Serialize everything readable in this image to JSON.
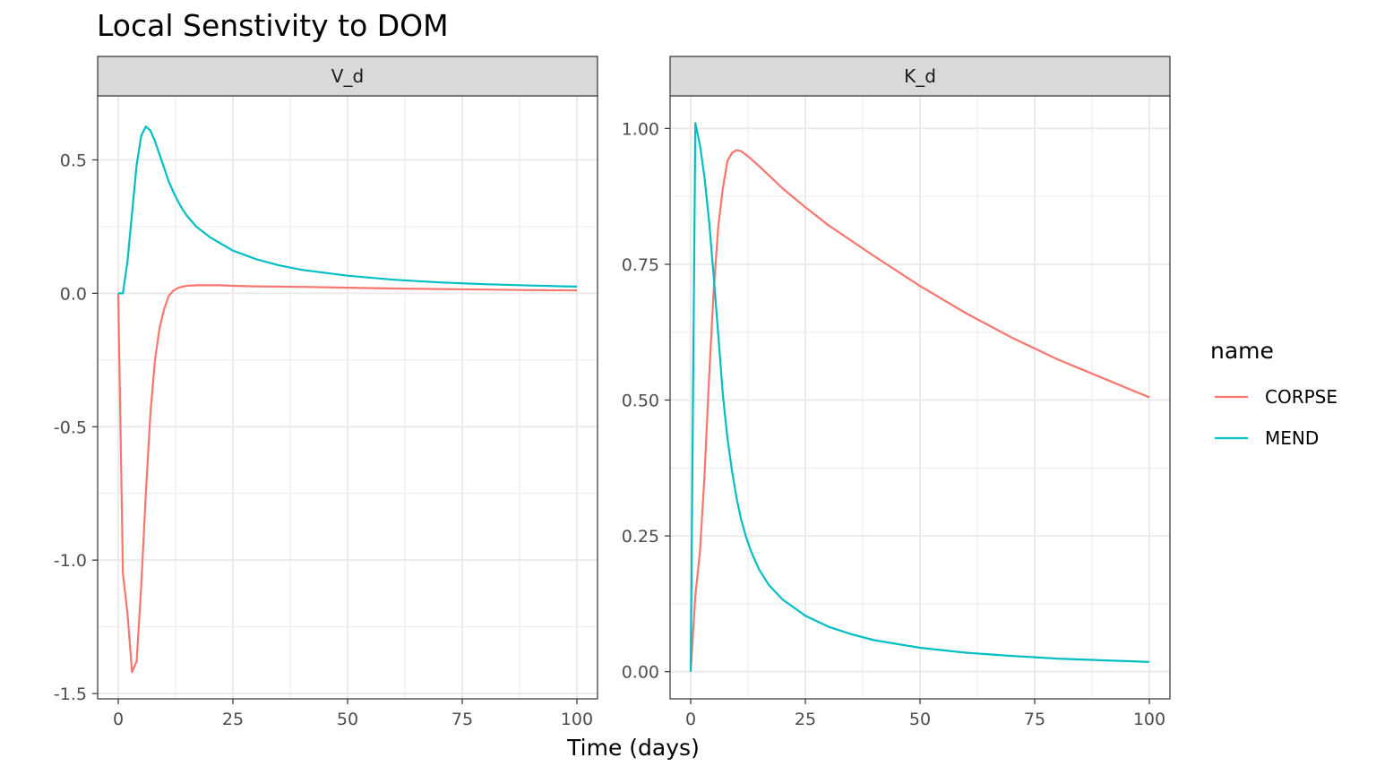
{
  "chart_data": {
    "type": "line",
    "title": "Local Senstivity to DOM",
    "xlabel": "Time (days)",
    "ylabel": "",
    "grid": true,
    "legend": {
      "title": "name",
      "position": "right",
      "entries": [
        {
          "name": "CORPSE",
          "color": "#F8766D"
        },
        {
          "name": "MEND",
          "color": "#00BFC4"
        }
      ]
    },
    "facets": [
      {
        "label": "V_d",
        "xlim": [
          -4.5,
          104.5
        ],
        "ylim": [
          -1.52,
          0.74
        ],
        "x_ticks": [
          0,
          25,
          50,
          75,
          100
        ],
        "y_ticks": [
          -1.5,
          -1.0,
          -0.5,
          0.0,
          0.5
        ],
        "y_tick_labels": [
          "-1.5",
          "-1.0",
          "-0.5",
          "0.0",
          "0.5"
        ],
        "series": [
          {
            "name": "CORPSE",
            "color": "#F8766D",
            "x": [
              0,
              1,
              2,
              3,
              4,
              5,
              6,
              7,
              8,
              9,
              10,
              11,
              12,
              13,
              14,
              15,
              17,
              20,
              22,
              25,
              30,
              40,
              50,
              60,
              70,
              80,
              90,
              100
            ],
            "y": [
              0,
              -1.05,
              -1.2,
              -1.42,
              -1.38,
              -1.1,
              -0.75,
              -0.45,
              -0.25,
              -0.13,
              -0.06,
              -0.01,
              0.01,
              0.02,
              0.025,
              0.028,
              0.03,
              0.03,
              0.03,
              0.028,
              0.026,
              0.024,
              0.021,
              0.018,
              0.016,
              0.014,
              0.012,
              0.011
            ]
          },
          {
            "name": "MEND",
            "color": "#00BFC4",
            "x": [
              0,
              1,
              2,
              3,
              4,
              5,
              6,
              7,
              8,
              9,
              10,
              11,
              12,
              13,
              14,
              15,
              17,
              20,
              25,
              30,
              35,
              40,
              50,
              60,
              70,
              80,
              90,
              100
            ],
            "y": [
              0,
              0.0,
              0.12,
              0.3,
              0.48,
              0.59,
              0.625,
              0.61,
              0.57,
              0.52,
              0.47,
              0.42,
              0.38,
              0.345,
              0.315,
              0.29,
              0.25,
              0.21,
              0.16,
              0.128,
              0.105,
              0.088,
              0.066,
              0.051,
              0.041,
              0.034,
              0.029,
              0.025
            ]
          }
        ]
      },
      {
        "label": "K_d",
        "xlim": [
          -4.5,
          104.5
        ],
        "ylim": [
          -0.05,
          1.06
        ],
        "x_ticks": [
          0,
          25,
          50,
          75,
          100
        ],
        "y_ticks": [
          0.0,
          0.25,
          0.5,
          0.75,
          1.0
        ],
        "y_tick_labels": [
          "0.00",
          "0.25",
          "0.50",
          "0.75",
          "1.00"
        ],
        "series": [
          {
            "name": "CORPSE",
            "color": "#F8766D",
            "x": [
              0,
              1,
              2,
              3,
              4,
              5,
              6,
              7,
              8,
              9,
              10,
              11,
              12,
              13,
              15,
              20,
              25,
              30,
              40,
              50,
              60,
              70,
              80,
              90,
              100
            ],
            "y": [
              0,
              0.14,
              0.22,
              0.36,
              0.54,
              0.7,
              0.82,
              0.89,
              0.94,
              0.955,
              0.96,
              0.958,
              0.952,
              0.945,
              0.93,
              0.89,
              0.855,
              0.822,
              0.765,
              0.71,
              0.66,
              0.615,
              0.575,
              0.54,
              0.505
            ]
          },
          {
            "name": "MEND",
            "color": "#00BFC4",
            "x": [
              0,
              1,
              2,
              3,
              4,
              5,
              6,
              7,
              8,
              9,
              10,
              11,
              12,
              13,
              14,
              15,
              17,
              20,
              25,
              30,
              35,
              40,
              50,
              60,
              70,
              80,
              90,
              100
            ],
            "y": [
              0,
              1.01,
              0.97,
              0.91,
              0.83,
              0.73,
              0.62,
              0.51,
              0.43,
              0.37,
              0.32,
              0.28,
              0.25,
              0.225,
              0.205,
              0.187,
              0.16,
              0.133,
              0.103,
              0.083,
              0.069,
              0.058,
              0.044,
              0.035,
              0.029,
              0.024,
              0.021,
              0.018
            ]
          }
        ]
      }
    ]
  }
}
